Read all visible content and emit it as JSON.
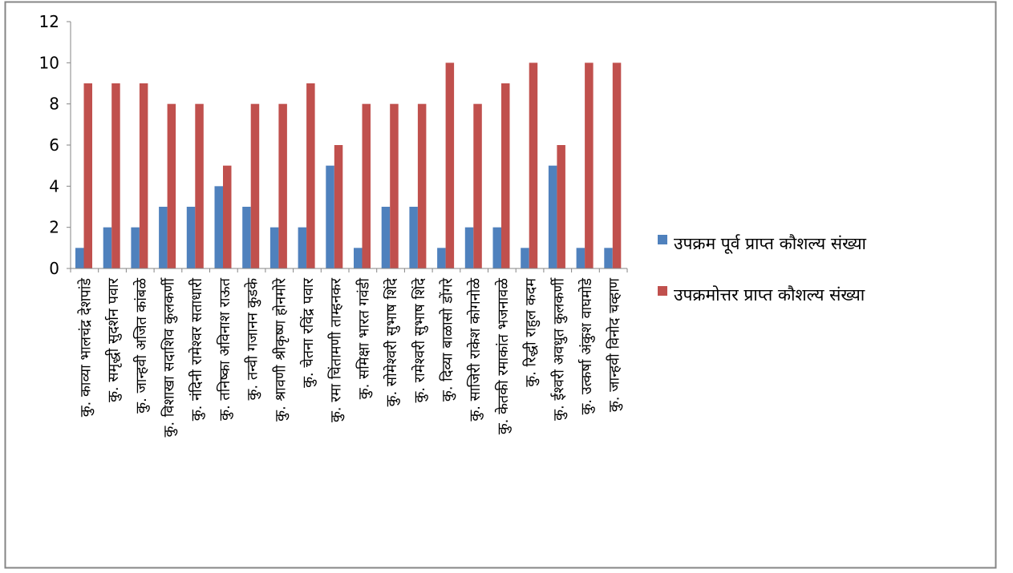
{
  "chart_data": {
    "type": "bar",
    "title": "",
    "xlabel": "",
    "ylabel": "",
    "ylim": [
      0,
      12
    ],
    "yticks": [
      0,
      2,
      4,
      6,
      8,
      10,
      12
    ],
    "grid": false,
    "legend_position": "right",
    "categories": [
      "कु. काव्या भालचंद्र देशपांडे",
      "कु. समृद्धी सुदर्शन पवार",
      "कु. जान्हवी अजित कांबळे",
      "कु. विशाखा सदाशिव कुलकर्णी",
      "कु. नंदिनी रामेश्वर सताधारी",
      "कु. तनिष्का अविनाश राऊत",
      "कु. तन्वी गजानन कुडके",
      "कु. श्रावणी श्रीकृष्ण होनमोरे",
      "कु. चेतना रविंद्र पवार",
      "कु. रमा चिंतामणी ताम्हनकर",
      "कु. समिक्षा भारत गवंडी",
      "कु. सोमेश्वरी सुभाष शिंदे",
      "कु. रामेश्वरी सुभाष शिंदे",
      "कु. दिव्या बाळासो डोंगरे",
      "कु. साजिरी राकेश कोगनोळे",
      "कु. केतकी रमाकांत भजनावळे",
      "कु. रिद्धी राहुल कदम",
      "कु. ईश्वरी अवधुत कुलकर्णी",
      "कु. उत्कर्षा अंकुश वाघमोडे",
      "कु. जान्हवी विनोद चव्हाण"
    ],
    "series": [
      {
        "name": "उपक्रम पूर्व  प्राप्त कौशल्य संख्या",
        "color": "#4F81BD",
        "values": [
          1,
          2,
          2,
          3,
          3,
          4,
          3,
          2,
          2,
          5,
          1,
          3,
          3,
          1,
          2,
          2,
          1,
          5,
          1,
          1
        ]
      },
      {
        "name": "उपक्रमोत्तर प्राप्त कौशल्य संख्या",
        "color": "#C0504D",
        "values": [
          9,
          9,
          9,
          8,
          8,
          5,
          8,
          8,
          9,
          6,
          8,
          8,
          8,
          10,
          8,
          9,
          10,
          6,
          10,
          10
        ]
      }
    ]
  }
}
